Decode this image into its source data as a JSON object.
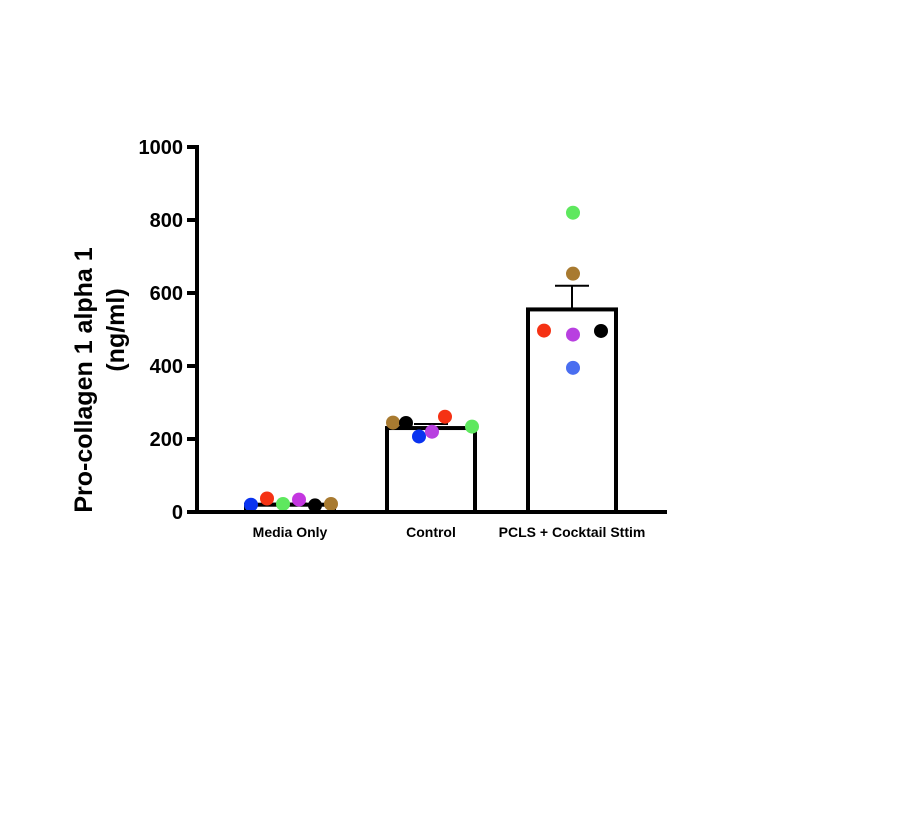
{
  "chart_data": {
    "type": "bar",
    "title": "",
    "xlabel": "",
    "ylabel_lines": [
      "Pro-collagen 1 alpha 1",
      "(ng/ml)"
    ],
    "ylim": [
      0,
      1000
    ],
    "yticks": [
      0,
      200,
      400,
      600,
      800,
      1000
    ],
    "ytick_labels": [
      "0",
      "200",
      "400",
      "600",
      "800",
      "1000"
    ],
    "grid": false,
    "legend": "none",
    "categories": [
      "Media Only",
      "Control",
      "PCLS + Cocktail Sttim"
    ],
    "values": [
      20,
      230,
      555
    ],
    "error_bars_upper": [
      3,
      11,
      65
    ],
    "point_colors": {
      "blue": "#0a33f0",
      "red": "#f53214",
      "green": "#5ee85e",
      "magenta": "#c436e0",
      "black": "#000000",
      "brown": "#a87a30",
      "light_blue": "#4a6ef0",
      "purple": "#b840e0"
    },
    "points": [
      [
        {
          "color": "blue",
          "value": 20
        },
        {
          "color": "red",
          "value": 37
        },
        {
          "color": "green",
          "value": 22
        },
        {
          "color": "magenta",
          "value": 34
        },
        {
          "color": "black",
          "value": 18
        },
        {
          "color": "brown",
          "value": 22
        }
      ],
      [
        {
          "color": "brown",
          "value": 245
        },
        {
          "color": "blue",
          "value": 207
        },
        {
          "color": "black",
          "value": 244
        },
        {
          "color": "red",
          "value": 261
        },
        {
          "color": "purple",
          "value": 220
        },
        {
          "color": "green",
          "value": 234
        }
      ],
      [
        {
          "color": "red",
          "value": 497
        },
        {
          "color": "green",
          "value": 820
        },
        {
          "color": "brown",
          "value": 653
        },
        {
          "color": "purple",
          "value": 486
        },
        {
          "color": "light_blue",
          "value": 395
        },
        {
          "color": "black",
          "value": 496
        }
      ]
    ]
  }
}
